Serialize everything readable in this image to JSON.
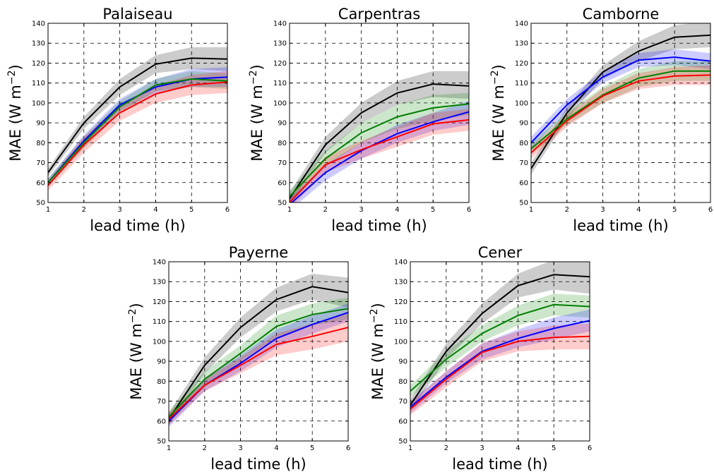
{
  "chart_data": [
    {
      "type": "line",
      "title": "Palaiseau",
      "xlabel": "lead time (h)",
      "ylabel": "MAE (W m",
      "ylabel_sup": "−2",
      "ylabel_close": ")",
      "x": [
        1,
        2,
        3,
        4,
        5,
        6
      ],
      "xlim": [
        1,
        6
      ],
      "ylim": [
        50,
        140
      ],
      "xticks": [
        1,
        2,
        3,
        4,
        5,
        6
      ],
      "yticks": [
        50,
        60,
        70,
        80,
        90,
        100,
        110,
        120,
        130,
        140
      ],
      "grid": true,
      "series": [
        {
          "color": "#000000",
          "values": [
            65,
            90,
            108,
            119.5,
            122.5,
            122
          ],
          "lower": [
            63,
            87,
            104,
            115,
            117,
            116
          ],
          "upper": [
            67,
            93,
            112,
            124,
            128,
            128
          ]
        },
        {
          "color": "#0000ff",
          "values": [
            60,
            81,
            99,
            108,
            112,
            113
          ],
          "lower": [
            58,
            78,
            96,
            105,
            108,
            108
          ],
          "upper": [
            62,
            84,
            102,
            112,
            117,
            118
          ]
        },
        {
          "color": "#008000",
          "values": [
            60,
            80,
            98,
            109,
            112,
            111
          ],
          "lower": [
            58,
            77,
            95,
            106,
            108,
            107
          ],
          "upper": [
            62,
            83,
            101,
            112,
            116,
            115
          ]
        },
        {
          "color": "#ff0000",
          "values": [
            58.5,
            79,
            95,
            104.5,
            109,
            110.5
          ],
          "lower": [
            56,
            75,
            91,
            100,
            104,
            105
          ],
          "upper": [
            61,
            83,
            99,
            109,
            114,
            116
          ]
        }
      ]
    },
    {
      "type": "line",
      "title": "Carpentras",
      "xlabel": "lead time (h)",
      "ylabel": "MAE (W m",
      "ylabel_sup": "−2",
      "ylabel_close": ")",
      "x": [
        1,
        2,
        3,
        4,
        5,
        6
      ],
      "xlim": [
        1,
        6
      ],
      "ylim": [
        50,
        140
      ],
      "xticks": [
        1,
        2,
        3,
        4,
        5,
        6
      ],
      "yticks": [
        50,
        60,
        70,
        80,
        90,
        100,
        110,
        120,
        130,
        140
      ],
      "grid": true,
      "series": [
        {
          "color": "#000000",
          "values": [
            52,
            79,
            95,
            105,
            109.5,
            108.5
          ],
          "lower": [
            49,
            75,
            90,
            99,
            103,
            102
          ],
          "upper": [
            55,
            83,
            100,
            111,
            116,
            116
          ]
        },
        {
          "color": "#008000",
          "values": [
            53,
            72,
            85,
            93,
            97.5,
            99.5
          ],
          "lower": [
            50,
            68,
            80,
            87,
            91,
            94
          ],
          "upper": [
            56,
            76,
            90,
            99,
            104,
            105
          ]
        },
        {
          "color": "#0000ff",
          "values": [
            49,
            65,
            76,
            84.5,
            90.5,
            95.5
          ],
          "lower": [
            46,
            61,
            72,
            80,
            86,
            89
          ],
          "upper": [
            52,
            69,
            80,
            89,
            95,
            101
          ]
        },
        {
          "color": "#ff0000",
          "values": [
            50,
            69,
            76.5,
            83,
            89.5,
            91.5
          ],
          "lower": [
            47,
            65,
            72,
            78,
            84,
            86
          ],
          "upper": [
            53,
            73,
            81,
            88,
            95,
            97
          ]
        }
      ]
    },
    {
      "type": "line",
      "title": "Camborne",
      "xlabel": "lead time (h)",
      "ylabel": "MAE (W m",
      "ylabel_sup": "−2",
      "ylabel_close": ")",
      "x": [
        1,
        2,
        3,
        4,
        5,
        6
      ],
      "xlim": [
        1,
        6
      ],
      "ylim": [
        50,
        140
      ],
      "xticks": [
        1,
        2,
        3,
        4,
        5,
        6
      ],
      "yticks": [
        50,
        60,
        70,
        80,
        90,
        100,
        110,
        120,
        130,
        140
      ],
      "grid": true,
      "series": [
        {
          "color": "#000000",
          "values": [
            67,
            95,
            115.5,
            126,
            133,
            134
          ],
          "lower": [
            64,
            92,
            112,
            121,
            127,
            128
          ],
          "upper": [
            70,
            98,
            119,
            131,
            139,
            141
          ]
        },
        {
          "color": "#0000ff",
          "values": [
            80,
            99,
            113,
            121.5,
            123,
            121
          ],
          "lower": [
            77,
            96,
            110,
            118,
            119,
            117
          ],
          "upper": [
            83,
            102,
            116,
            125,
            127,
            125
          ]
        },
        {
          "color": "#008000",
          "values": [
            77,
            92,
            104,
            112.5,
            116,
            116
          ],
          "lower": [
            74,
            89,
            100,
            108,
            111,
            111
          ],
          "upper": [
            80,
            95,
            108,
            117,
            121,
            121
          ]
        },
        {
          "color": "#ff0000",
          "values": [
            75,
            91,
            103.5,
            111,
            113.5,
            114
          ],
          "lower": [
            72,
            88,
            100,
            107,
            109,
            109
          ],
          "upper": [
            78,
            94,
            107,
            115,
            118,
            119
          ]
        }
      ]
    },
    {
      "type": "line",
      "title": "Payerne",
      "xlabel": "lead time (h)",
      "ylabel": "MAE (W m",
      "ylabel_sup": "−2",
      "ylabel_close": ")",
      "x": [
        1,
        2,
        3,
        4,
        5,
        6
      ],
      "xlim": [
        1,
        6
      ],
      "ylim": [
        50,
        140
      ],
      "xticks": [
        1,
        2,
        3,
        4,
        5,
        6
      ],
      "yticks": [
        50,
        60,
        70,
        80,
        90,
        100,
        110,
        120,
        130,
        140
      ],
      "grid": true,
      "series": [
        {
          "color": "#000000",
          "values": [
            61,
            88,
            107,
            121,
            127.5,
            124.5
          ],
          "lower": [
            58,
            84,
            102,
            115,
            121,
            117
          ],
          "upper": [
            64,
            92,
            112,
            127,
            134,
            132
          ]
        },
        {
          "color": "#008000",
          "values": [
            62,
            81,
            94,
            107.5,
            113.5,
            116.5
          ],
          "lower": [
            59,
            77,
            90,
            102,
            108,
            111
          ],
          "upper": [
            65,
            85,
            98,
            113,
            119,
            122
          ]
        },
        {
          "color": "#0000ff",
          "values": [
            60,
            78,
            89,
            101.5,
            108.5,
            114.5
          ],
          "lower": [
            57,
            75,
            85,
            97,
            104,
            110
          ],
          "upper": [
            63,
            81,
            93,
            106,
            113,
            119
          ]
        },
        {
          "color": "#ff0000",
          "values": [
            61,
            78,
            88,
            98.5,
            102.5,
            107
          ],
          "lower": [
            58,
            75,
            84,
            93,
            96,
            100
          ],
          "upper": [
            64,
            81,
            92,
            104,
            109,
            114
          ]
        }
      ]
    },
    {
      "type": "line",
      "title": "Cener",
      "xlabel": "lead time (h)",
      "ylabel": "MAE (W m",
      "ylabel_sup": "−2",
      "ylabel_close": ")",
      "x": [
        1,
        2,
        3,
        4,
        5,
        6
      ],
      "xlim": [
        1,
        6
      ],
      "ylim": [
        50,
        140
      ],
      "xticks": [
        1,
        2,
        3,
        4,
        5,
        6
      ],
      "yticks": [
        50,
        60,
        70,
        80,
        90,
        100,
        110,
        120,
        130,
        140
      ],
      "grid": true,
      "series": [
        {
          "color": "#000000",
          "values": [
            68,
            95,
            114,
            128,
            133.5,
            132.5
          ],
          "lower": [
            65,
            91,
            109,
            122,
            126,
            124
          ],
          "upper": [
            71,
            99,
            119,
            134,
            141,
            141
          ]
        },
        {
          "color": "#008000",
          "values": [
            75,
            91,
            104,
            113,
            118.5,
            117.5
          ],
          "lower": [
            72,
            87,
            100,
            108,
            113,
            112
          ],
          "upper": [
            78,
            95,
            108,
            118,
            124,
            123
          ]
        },
        {
          "color": "#0000ff",
          "values": [
            67,
            82,
            95,
            101.5,
            106.5,
            110.5
          ],
          "lower": [
            64,
            79,
            91,
            97,
            101,
            105
          ],
          "upper": [
            70,
            85,
            99,
            106,
            112,
            116
          ]
        },
        {
          "color": "#ff0000",
          "values": [
            66,
            81,
            94.5,
            100,
            102,
            102.5
          ],
          "lower": [
            63,
            77,
            90,
            95,
            96,
            96
          ],
          "upper": [
            69,
            85,
            99,
            105,
            108,
            109
          ]
        }
      ]
    }
  ]
}
